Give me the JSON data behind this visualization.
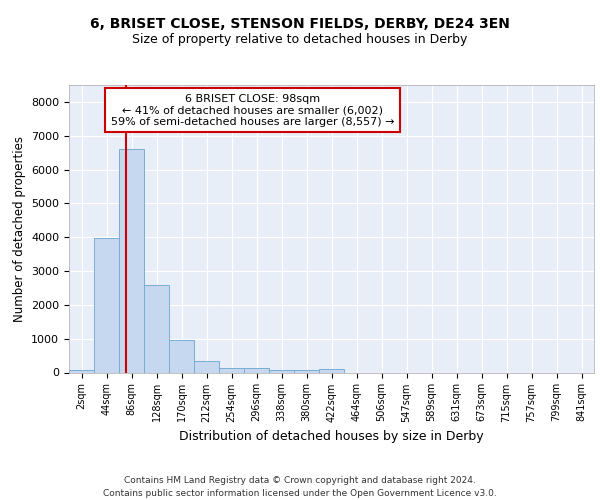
{
  "title1": "6, BRISET CLOSE, STENSON FIELDS, DERBY, DE24 3EN",
  "title2": "Size of property relative to detached houses in Derby",
  "xlabel": "Distribution of detached houses by size in Derby",
  "ylabel": "Number of detached properties",
  "bin_labels": [
    "2sqm",
    "44sqm",
    "86sqm",
    "128sqm",
    "170sqm",
    "212sqm",
    "254sqm",
    "296sqm",
    "338sqm",
    "380sqm",
    "422sqm",
    "464sqm",
    "506sqm",
    "547sqm",
    "589sqm",
    "631sqm",
    "673sqm",
    "715sqm",
    "757sqm",
    "799sqm",
    "841sqm"
  ],
  "bar_heights": [
    80,
    3980,
    6600,
    2600,
    950,
    330,
    130,
    130,
    80,
    80,
    90,
    0,
    0,
    0,
    0,
    0,
    0,
    0,
    0,
    0,
    0
  ],
  "bar_color": "#c5d8f0",
  "bar_edge_color": "#7aadd4",
  "ylim": [
    0,
    8500
  ],
  "yticks": [
    0,
    1000,
    2000,
    3000,
    4000,
    5000,
    6000,
    7000,
    8000
  ],
  "vline_color": "#cc0000",
  "annotation_text": "6 BRISET CLOSE: 98sqm\n← 41% of detached houses are smaller (6,002)\n59% of semi-detached houses are larger (8,557) →",
  "footer_line1": "Contains HM Land Registry data © Crown copyright and database right 2024.",
  "footer_line2": "Contains public sector information licensed under the Open Government Licence v3.0.",
  "bg_color": "#ffffff",
  "plot_bg_color": "#e8eef8"
}
